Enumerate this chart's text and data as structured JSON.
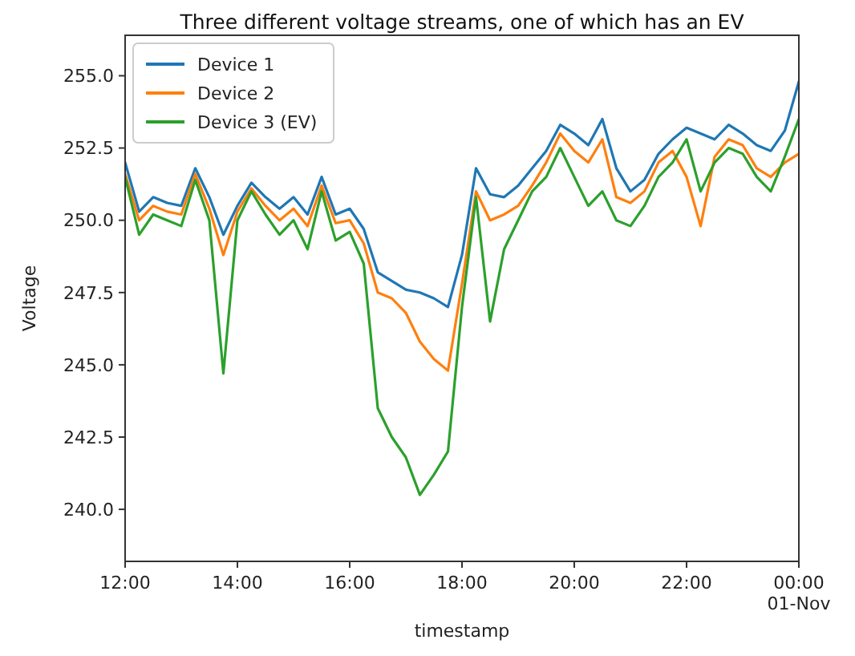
{
  "chart_data": {
    "type": "line",
    "title": "Three different voltage streams, one of which has an EV",
    "xlabel": "timestamp",
    "ylabel": "Voltage",
    "x": [
      12,
      12.25,
      12.5,
      12.75,
      13,
      13.25,
      13.5,
      13.75,
      14,
      14.25,
      14.5,
      14.75,
      15,
      15.25,
      15.5,
      15.75,
      16,
      16.25,
      16.5,
      16.75,
      17,
      17.25,
      17.5,
      17.75,
      18,
      18.25,
      18.5,
      18.75,
      19,
      19.25,
      19.5,
      19.75,
      20,
      20.25,
      20.5,
      20.75,
      21,
      21.25,
      21.5,
      21.75,
      22,
      22.25,
      22.5,
      22.75,
      23,
      23.25,
      23.5,
      23.75,
      24
    ],
    "series": [
      {
        "name": "Device 1",
        "color": "#1f77b4",
        "values": [
          252.0,
          250.3,
          250.8,
          250.6,
          250.5,
          251.8,
          250.8,
          249.5,
          250.5,
          251.3,
          250.8,
          250.4,
          250.8,
          250.2,
          251.5,
          250.2,
          250.4,
          249.7,
          248.2,
          247.9,
          247.6,
          247.5,
          247.3,
          247.0,
          248.8,
          251.8,
          250.9,
          250.8,
          251.2,
          251.8,
          252.4,
          253.3,
          253.0,
          252.6,
          253.5,
          251.8,
          251.0,
          251.4,
          252.3,
          252.8,
          253.2,
          253.0,
          252.8,
          253.3,
          253.0,
          252.6,
          252.4,
          253.1,
          254.8
        ]
      },
      {
        "name": "Device 2",
        "color": "#ff7f0e",
        "values": [
          251.6,
          250.0,
          250.5,
          250.3,
          250.2,
          251.6,
          250.4,
          248.8,
          250.3,
          251.1,
          250.5,
          250.0,
          250.4,
          249.8,
          251.2,
          249.9,
          250.0,
          249.2,
          247.5,
          247.3,
          246.8,
          245.8,
          245.2,
          244.8,
          247.8,
          251.0,
          250.0,
          250.2,
          250.5,
          251.2,
          252.0,
          253.0,
          252.4,
          252.0,
          252.8,
          250.8,
          250.6,
          251.0,
          252.0,
          252.4,
          251.5,
          249.8,
          252.2,
          252.8,
          252.6,
          251.8,
          251.5,
          252.0,
          252.3
        ]
      },
      {
        "name": "Device 3 (EV)",
        "color": "#2ca02c",
        "values": [
          251.5,
          249.5,
          250.2,
          250.0,
          249.8,
          251.4,
          250.0,
          244.7,
          250.0,
          251.0,
          250.2,
          249.5,
          250.0,
          249.0,
          251.0,
          249.3,
          249.6,
          248.5,
          243.5,
          242.5,
          241.8,
          240.5,
          241.2,
          242.0,
          247.0,
          250.8,
          246.5,
          249.0,
          250.0,
          251.0,
          251.5,
          252.5,
          251.5,
          250.5,
          251.0,
          250.0,
          249.8,
          250.5,
          251.5,
          252.0,
          252.8,
          251.0,
          252.0,
          252.5,
          252.3,
          251.5,
          251.0,
          252.2,
          253.5
        ]
      }
    ],
    "xlim": [
      12,
      24
    ],
    "xticks": [
      {
        "value": 12,
        "label": "12:00"
      },
      {
        "value": 14,
        "label": "14:00"
      },
      {
        "value": 16,
        "label": "16:00"
      },
      {
        "value": 18,
        "label": "18:00"
      },
      {
        "value": 20,
        "label": "20:00"
      },
      {
        "value": 22,
        "label": "22:00"
      },
      {
        "value": 24,
        "label": "00:00\n01-Nov"
      }
    ],
    "ylim": [
      238.2,
      256.4
    ],
    "yticks": [
      {
        "value": 240,
        "label": "240.0"
      },
      {
        "value": 242.5,
        "label": "242.5"
      },
      {
        "value": 245,
        "label": "245.0"
      },
      {
        "value": 247.5,
        "label": "247.5"
      },
      {
        "value": 250,
        "label": "250.0"
      },
      {
        "value": 252.5,
        "label": "252.5"
      },
      {
        "value": 255,
        "label": "255.0"
      }
    ],
    "legend": "top left",
    "grid": false,
    "marker": "none",
    "line_style": "solid"
  }
}
